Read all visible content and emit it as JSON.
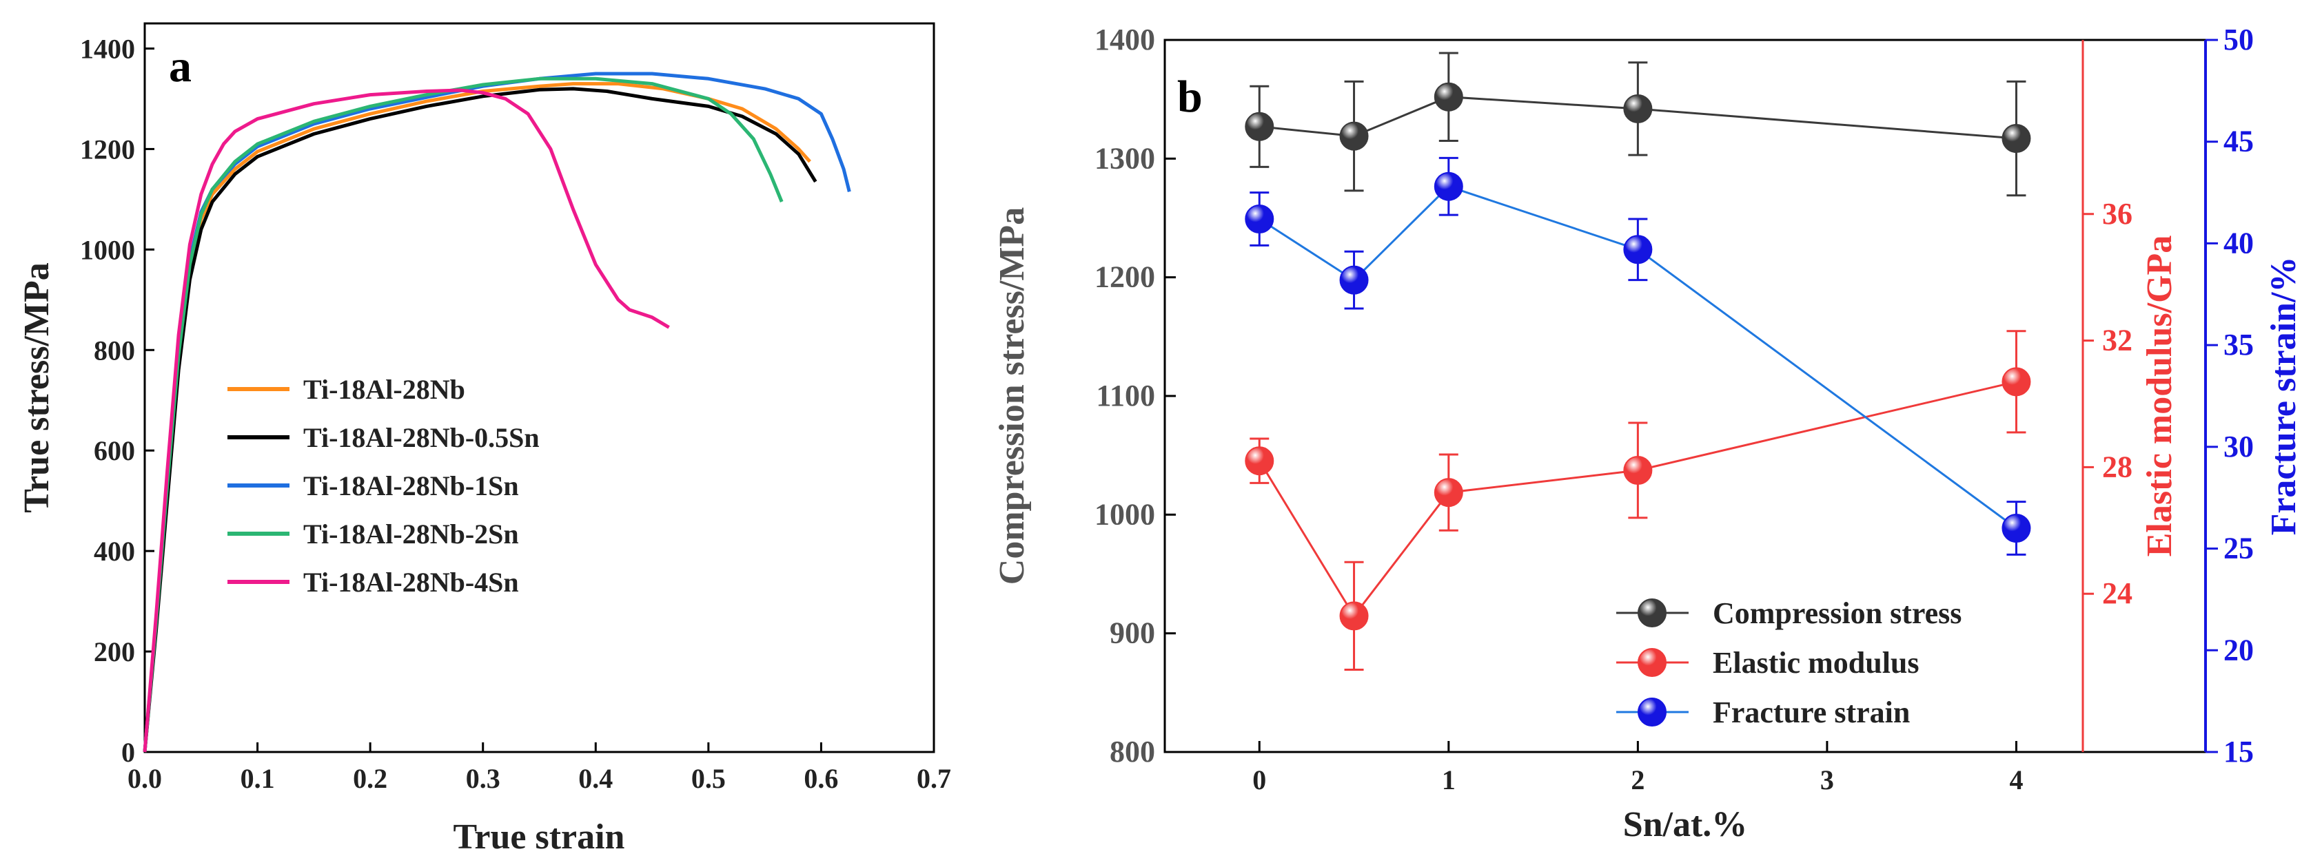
{
  "colors": {
    "ti18al28nb": "#ff8c1a",
    "sn05": "#000000",
    "sn1": "#1f6fe0",
    "sn2": "#2bb673",
    "sn4": "#ee1a8c",
    "compression": "#3a3a3a",
    "elastic": "#f03a3a",
    "fracture": "#1515e0",
    "fracture_line": "#1f78e0"
  },
  "chart_data": [
    {
      "panel": "a",
      "type": "line",
      "xlabel": "True strain",
      "ylabel": "True stress/MPa",
      "xlim": [
        0.0,
        0.7
      ],
      "ylim": [
        0,
        1450
      ],
      "xticks": [
        "0.0",
        "0.1",
        "0.2",
        "0.3",
        "0.4",
        "0.5",
        "0.6",
        "0.7"
      ],
      "yticks": [
        "0",
        "200",
        "400",
        "600",
        "800",
        "1000",
        "1200",
        "1400"
      ],
      "legend_position": "center-left",
      "series": [
        {
          "name": "Ti-18Al-28Nb",
          "color": "#ff8c1a",
          "x": [
            0,
            0.01,
            0.02,
            0.03,
            0.04,
            0.05,
            0.06,
            0.08,
            0.1,
            0.15,
            0.2,
            0.25,
            0.3,
            0.35,
            0.38,
            0.42,
            0.46,
            0.5,
            0.53,
            0.56,
            0.58,
            0.59
          ],
          "y": [
            0,
            250,
            520,
            780,
            960,
            1060,
            1110,
            1160,
            1195,
            1240,
            1270,
            1295,
            1315,
            1325,
            1330,
            1330,
            1320,
            1300,
            1280,
            1240,
            1200,
            1175
          ]
        },
        {
          "name": "Ti-18Al-28Nb-0.5Sn",
          "color": "#000000",
          "x": [
            0,
            0.01,
            0.02,
            0.03,
            0.04,
            0.05,
            0.06,
            0.08,
            0.1,
            0.15,
            0.2,
            0.25,
            0.3,
            0.35,
            0.38,
            0.41,
            0.45,
            0.5,
            0.53,
            0.56,
            0.58,
            0.595
          ],
          "y": [
            0,
            240,
            500,
            760,
            940,
            1040,
            1095,
            1150,
            1185,
            1230,
            1260,
            1285,
            1305,
            1318,
            1320,
            1315,
            1300,
            1285,
            1265,
            1230,
            1190,
            1135
          ]
        },
        {
          "name": "Ti-18Al-28Nb-1Sn",
          "color": "#1f6fe0",
          "x": [
            0,
            0.01,
            0.02,
            0.03,
            0.04,
            0.05,
            0.06,
            0.08,
            0.1,
            0.15,
            0.2,
            0.25,
            0.3,
            0.35,
            0.4,
            0.45,
            0.5,
            0.55,
            0.58,
            0.6,
            0.61,
            0.62,
            0.625
          ],
          "y": [
            0,
            260,
            540,
            800,
            980,
            1075,
            1120,
            1170,
            1205,
            1250,
            1280,
            1303,
            1325,
            1340,
            1350,
            1350,
            1340,
            1320,
            1300,
            1270,
            1220,
            1160,
            1115
          ]
        },
        {
          "name": "Ti-18Al-28Nb-2Sn",
          "color": "#2bb673",
          "x": [
            0,
            0.01,
            0.02,
            0.03,
            0.04,
            0.05,
            0.06,
            0.08,
            0.1,
            0.15,
            0.2,
            0.25,
            0.3,
            0.35,
            0.4,
            0.45,
            0.5,
            0.52,
            0.54,
            0.555,
            0.565
          ],
          "y": [
            0,
            255,
            530,
            790,
            970,
            1070,
            1120,
            1175,
            1210,
            1255,
            1285,
            1308,
            1328,
            1340,
            1340,
            1330,
            1300,
            1270,
            1220,
            1150,
            1095
          ]
        },
        {
          "name": "Ti-18Al-28Nb-4Sn",
          "color": "#ee1a8c",
          "x": [
            0,
            0.01,
            0.02,
            0.03,
            0.04,
            0.05,
            0.06,
            0.07,
            0.08,
            0.1,
            0.15,
            0.2,
            0.25,
            0.28,
            0.3,
            0.32,
            0.34,
            0.36,
            0.38,
            0.4,
            0.42,
            0.43,
            0.45,
            0.465
          ],
          "y": [
            0,
            270,
            560,
            830,
            1010,
            1110,
            1170,
            1210,
            1235,
            1260,
            1290,
            1308,
            1315,
            1317,
            1312,
            1300,
            1270,
            1200,
            1080,
            970,
            900,
            880,
            865,
            845
          ]
        }
      ]
    },
    {
      "panel": "b",
      "type": "scatter",
      "xlabel": "Sn/at.%",
      "ylabel_left": "Compression stress/MPa",
      "ylabel_right1": "Elastic modulus/GPa",
      "ylabel_right2": "Fracture strain/%",
      "xlim": [
        -0.5,
        5
      ],
      "ylim_left": [
        800,
        1400
      ],
      "ylim_right1": [
        19,
        41.5
      ],
      "ylim_right2": [
        15,
        50
      ],
      "xticks": [
        "0",
        "1",
        "2",
        "3",
        "4"
      ],
      "yticks_left": [
        "800",
        "900",
        "1000",
        "1100",
        "1200",
        "1300",
        "1400"
      ],
      "yticks_right1": [
        "24",
        "28",
        "32",
        "36"
      ],
      "yticks_right2": [
        "15",
        "20",
        "25",
        "30",
        "35",
        "40",
        "45",
        "50"
      ],
      "legend_position": "bottom-right",
      "categories": [
        0,
        0.5,
        1,
        2,
        4
      ],
      "series": [
        {
          "name": "Compression stress",
          "axis": "left",
          "color": "#3a3a3a",
          "values": [
            1327,
            1319,
            1352,
            1342,
            1317
          ],
          "errors": [
            34,
            46,
            37,
            39,
            48
          ]
        },
        {
          "name": "Elastic modulus",
          "axis": "right1",
          "color": "#f03a3a",
          "values": [
            28.2,
            23.3,
            27.2,
            27.9,
            30.7
          ],
          "errors": [
            0.7,
            1.7,
            1.2,
            1.5,
            1.6
          ]
        },
        {
          "name": "Fracture strain",
          "axis": "right2",
          "color": "#1515e0",
          "values": [
            41.2,
            38.2,
            42.8,
            39.7,
            26.0
          ],
          "errors": [
            1.3,
            1.4,
            1.4,
            1.5,
            1.3
          ]
        }
      ]
    }
  ]
}
